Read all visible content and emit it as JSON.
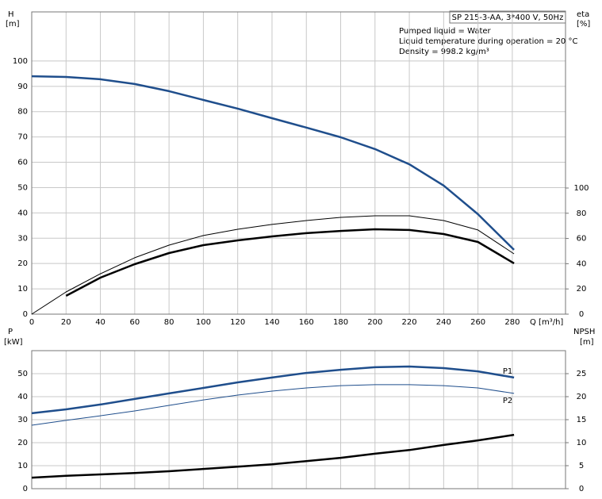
{
  "chart_data": [
    {
      "type": "line",
      "title": "SP 215-3-AA, 3*400 V, 50Hz",
      "annotations": [
        "Pumped liquid = Water",
        "Liquid temperature during operation = 20 °C",
        "Density = 998.2 kg/m³"
      ],
      "ylabel": "H",
      "ylabel_unit": "[m]",
      "y2label": "eta",
      "y2label_unit": "[%]",
      "xlabel": "Q [m³/h]",
      "x": [
        0,
        20,
        40,
        60,
        80,
        100,
        120,
        140,
        160,
        180,
        200,
        220,
        240,
        260,
        281
      ],
      "xlim": [
        0,
        311
      ],
      "xticks": [
        0,
        20,
        40,
        60,
        80,
        100,
        120,
        140,
        160,
        180,
        200,
        220,
        240,
        260,
        280
      ],
      "ylim": [
        0,
        119.4
      ],
      "yticks": [
        0,
        10,
        20,
        30,
        40,
        50,
        60,
        70,
        80,
        90,
        100
      ],
      "y2lim": [
        0,
        239.6
      ],
      "y2ticks": [
        0,
        20,
        40,
        60,
        80,
        100
      ],
      "grid": true,
      "series": [
        {
          "color": "#1f4e8c",
          "linewidth": 2.5,
          "values": [
            94.0,
            93.7,
            92.8,
            90.9,
            88.1,
            84.6,
            81.2,
            77.4,
            73.7,
            69.9,
            65.2,
            59.2,
            50.8,
            39.5,
            25.4
          ]
        },
        {
          "color": "#000000",
          "linewidth": 1,
          "axis": "y2",
          "values": [
            0,
            17.6,
            32,
            44.7,
            54.7,
            62.3,
            67.3,
            71.1,
            74.2,
            76.7,
            78,
            78,
            74.2,
            66.7,
            47.8
          ]
        },
        {
          "color": "#000000",
          "linewidth": 2.5,
          "axis": "y2",
          "values": [
            null,
            14.5,
            28.9,
            39.6,
            48.4,
            54.7,
            58.5,
            61.6,
            64.2,
            66,
            67.3,
            66.7,
            63.5,
            57.2,
            40.3
          ]
        }
      ]
    },
    {
      "type": "line",
      "ylabel": "P",
      "ylabel_unit": "[kW]",
      "y2label": "NPSH",
      "y2label_unit": "[m]",
      "x": [
        0,
        20,
        40,
        60,
        80,
        100,
        120,
        140,
        160,
        180,
        200,
        220,
        240,
        260,
        281
      ],
      "xlim": [
        0,
        311
      ],
      "xgrid": [
        0,
        20,
        40,
        60,
        80,
        100,
        120,
        140,
        160,
        180,
        200,
        220,
        240,
        260,
        280
      ],
      "ylim": [
        0,
        60
      ],
      "yticks": [
        0,
        10,
        20,
        30,
        40,
        50
      ],
      "y2lim": [
        0,
        30
      ],
      "y2ticks": [
        0,
        5,
        10,
        15,
        20,
        25
      ],
      "grid": true,
      "series": [
        {
          "name": "P1",
          "color": "#1f4e8c",
          "linewidth": 2.5,
          "values": [
            32.8,
            34.5,
            36.6,
            39,
            41.4,
            43.8,
            46.2,
            48.3,
            50.3,
            51.7,
            52.8,
            53.1,
            52.4,
            51,
            48.3
          ]
        },
        {
          "name": "P2",
          "color": "#1f4e8c",
          "linewidth": 1,
          "values": [
            27.6,
            29.7,
            31.7,
            33.8,
            36.2,
            38.6,
            40.7,
            42.4,
            43.8,
            44.8,
            45.2,
            45.2,
            44.8,
            43.8,
            41.4
          ]
        },
        {
          "color": "#000000",
          "linewidth": 2.5,
          "axis": "y2",
          "values": [
            2.4,
            2.8,
            3.1,
            3.4,
            3.8,
            4.3,
            4.8,
            5.3,
            6,
            6.7,
            7.6,
            8.4,
            9.5,
            10.5,
            11.7
          ]
        }
      ]
    }
  ]
}
